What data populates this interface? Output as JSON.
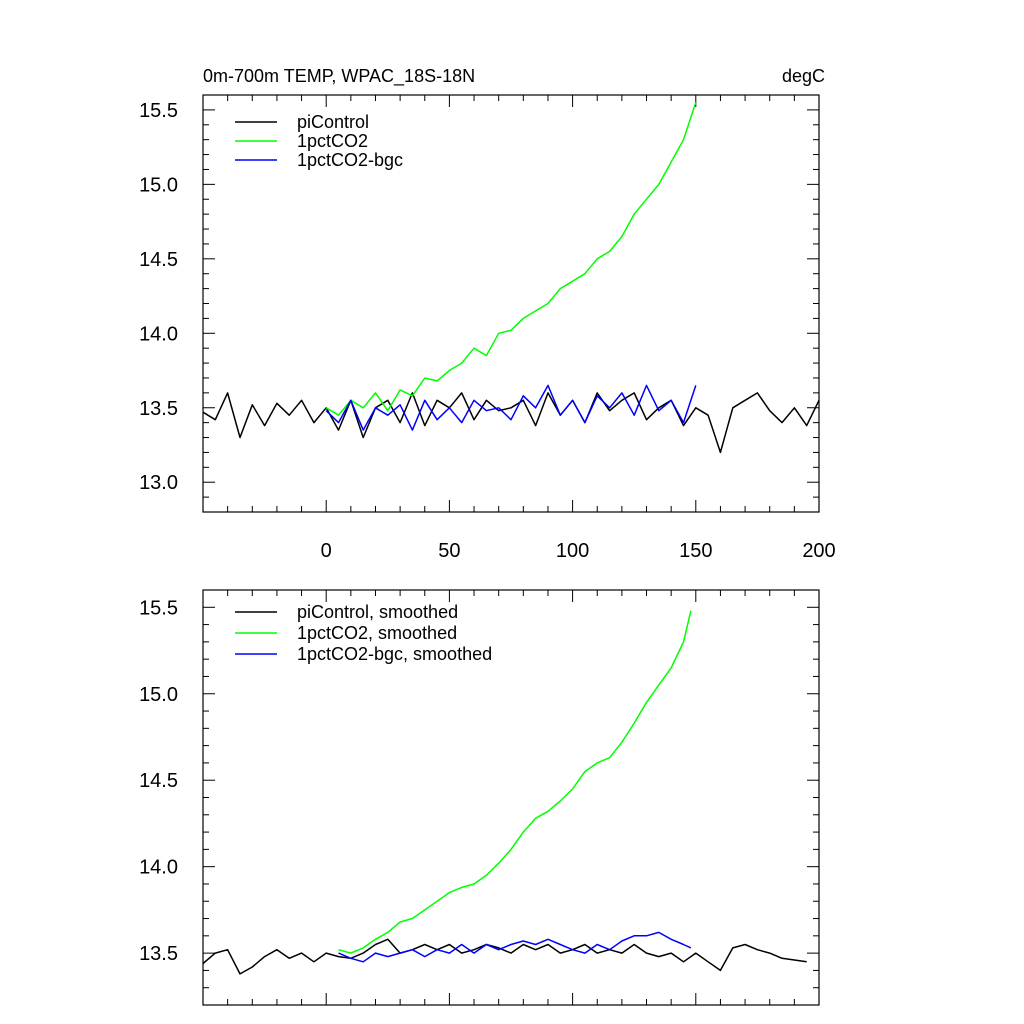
{
  "figure": {
    "left_title": "0m-700m TEMP, WPAC_18S-18N",
    "right_title": "degC"
  },
  "chart_data": [
    {
      "type": "line",
      "title": "0m-700m TEMP, WPAC_18S-18N",
      "units": "degC",
      "xlim": [
        -50,
        200
      ],
      "ylim": [
        12.8,
        15.6
      ],
      "x_ticks": [
        0,
        50,
        100,
        150,
        200
      ],
      "y_ticks": [
        13.0,
        13.5,
        14.0,
        14.5,
        15.0,
        15.5
      ],
      "y_tick_labels": [
        "13.0",
        "13.5",
        "14.0",
        "14.5",
        "15.0",
        "15.5"
      ],
      "legend_position": "top-left",
      "series": [
        {
          "name": "piControl",
          "color": "#000000",
          "x": [
            -50,
            -45,
            -40,
            -35,
            -30,
            -25,
            -20,
            -15,
            -10,
            -5,
            0,
            5,
            10,
            15,
            20,
            25,
            30,
            35,
            40,
            45,
            50,
            55,
            60,
            65,
            70,
            75,
            80,
            85,
            90,
            95,
            100,
            105,
            110,
            115,
            120,
            125,
            130,
            135,
            140,
            145,
            150,
            155,
            160,
            165,
            170,
            175,
            180,
            185,
            190,
            195,
            200
          ],
          "y": [
            13.47,
            13.42,
            13.6,
            13.3,
            13.52,
            13.38,
            13.53,
            13.45,
            13.55,
            13.4,
            13.5,
            13.35,
            13.55,
            13.3,
            13.5,
            13.55,
            13.4,
            13.6,
            13.38,
            13.55,
            13.5,
            13.6,
            13.42,
            13.55,
            13.48,
            13.5,
            13.55,
            13.38,
            13.6,
            13.45,
            13.55,
            13.4,
            13.6,
            13.48,
            13.55,
            13.6,
            13.42,
            13.5,
            13.55,
            13.38,
            13.5,
            13.45,
            13.2,
            13.5,
            13.55,
            13.6,
            13.48,
            13.4,
            13.5,
            13.38,
            13.55
          ]
        },
        {
          "name": "1pctCO2",
          "color": "#00ff00",
          "x": [
            0,
            5,
            10,
            15,
            20,
            25,
            30,
            35,
            40,
            45,
            50,
            55,
            60,
            65,
            70,
            75,
            80,
            85,
            90,
            95,
            100,
            105,
            110,
            115,
            120,
            125,
            130,
            135,
            140,
            145,
            150
          ],
          "y": [
            13.5,
            13.45,
            13.55,
            13.5,
            13.6,
            13.48,
            13.62,
            13.58,
            13.7,
            13.68,
            13.75,
            13.8,
            13.9,
            13.85,
            14.0,
            14.02,
            14.1,
            14.15,
            14.2,
            14.3,
            14.35,
            14.4,
            14.5,
            14.55,
            14.65,
            14.8,
            14.9,
            15.0,
            15.15,
            15.3,
            15.55
          ]
        },
        {
          "name": "1pctCO2-bgc",
          "color": "#0000ff",
          "x": [
            0,
            5,
            10,
            15,
            20,
            25,
            30,
            35,
            40,
            45,
            50,
            55,
            60,
            65,
            70,
            75,
            80,
            85,
            90,
            95,
            100,
            105,
            110,
            115,
            120,
            125,
            130,
            135,
            140,
            145,
            150
          ],
          "y": [
            13.48,
            13.4,
            13.55,
            13.35,
            13.5,
            13.45,
            13.52,
            13.35,
            13.55,
            13.42,
            13.5,
            13.4,
            13.55,
            13.48,
            13.5,
            13.42,
            13.58,
            13.5,
            13.65,
            13.45,
            13.55,
            13.4,
            13.58,
            13.5,
            13.6,
            13.45,
            13.65,
            13.48,
            13.55,
            13.4,
            13.65
          ]
        }
      ]
    },
    {
      "type": "line",
      "xlim": [
        -50,
        200
      ],
      "ylim": [
        13.2,
        15.6
      ],
      "x_ticks": [
        0,
        50,
        100,
        150,
        200
      ],
      "y_ticks": [
        13.5,
        14.0,
        14.5,
        15.0,
        15.5
      ],
      "y_tick_labels": [
        "13.5",
        "14.0",
        "14.5",
        "15.0",
        "15.5"
      ],
      "legend_position": "top-left",
      "series": [
        {
          "name": "piControl, smoothed",
          "color": "#000000",
          "x": [
            -50,
            -45,
            -40,
            -35,
            -30,
            -25,
            -20,
            -15,
            -10,
            -5,
            0,
            5,
            10,
            15,
            20,
            25,
            30,
            35,
            40,
            45,
            50,
            55,
            60,
            65,
            70,
            75,
            80,
            85,
            90,
            95,
            100,
            105,
            110,
            115,
            120,
            125,
            130,
            135,
            140,
            145,
            150,
            155,
            160,
            165,
            170,
            175,
            180,
            185,
            190,
            195
          ],
          "y": [
            13.44,
            13.5,
            13.52,
            13.38,
            13.42,
            13.48,
            13.52,
            13.47,
            13.5,
            13.45,
            13.5,
            13.48,
            13.47,
            13.5,
            13.55,
            13.58,
            13.5,
            13.52,
            13.55,
            13.52,
            13.55,
            13.5,
            13.52,
            13.55,
            13.53,
            13.5,
            13.55,
            13.52,
            13.55,
            13.5,
            13.52,
            13.55,
            13.5,
            13.52,
            13.5,
            13.55,
            13.5,
            13.48,
            13.5,
            13.45,
            13.5,
            13.45,
            13.4,
            13.53,
            13.55,
            13.52,
            13.5,
            13.47,
            13.46,
            13.45
          ]
        },
        {
          "name": "1pctCO2, smoothed",
          "color": "#00ff00",
          "x": [
            5,
            10,
            15,
            20,
            25,
            30,
            35,
            40,
            45,
            50,
            55,
            60,
            65,
            70,
            75,
            80,
            85,
            90,
            95,
            100,
            105,
            110,
            115,
            120,
            125,
            130,
            135,
            140,
            145,
            148
          ],
          "y": [
            13.52,
            13.5,
            13.53,
            13.58,
            13.62,
            13.68,
            13.7,
            13.75,
            13.8,
            13.85,
            13.88,
            13.9,
            13.95,
            14.02,
            14.1,
            14.2,
            14.28,
            14.32,
            14.38,
            14.45,
            14.55,
            14.6,
            14.63,
            14.72,
            14.83,
            14.95,
            15.05,
            15.15,
            15.3,
            15.48
          ]
        },
        {
          "name": "1pctCO2-bgc, smoothed",
          "color": "#0000ff",
          "x": [
            5,
            10,
            15,
            20,
            25,
            30,
            35,
            40,
            45,
            50,
            55,
            60,
            65,
            70,
            75,
            80,
            85,
            90,
            95,
            100,
            105,
            110,
            115,
            120,
            125,
            130,
            135,
            140,
            145,
            148
          ],
          "y": [
            13.5,
            13.47,
            13.45,
            13.5,
            13.48,
            13.5,
            13.52,
            13.48,
            13.52,
            13.5,
            13.55,
            13.5,
            13.55,
            13.52,
            13.55,
            13.57,
            13.55,
            13.58,
            13.55,
            13.52,
            13.5,
            13.55,
            13.52,
            13.57,
            13.6,
            13.6,
            13.62,
            13.58,
            13.55,
            13.53
          ]
        }
      ]
    }
  ]
}
